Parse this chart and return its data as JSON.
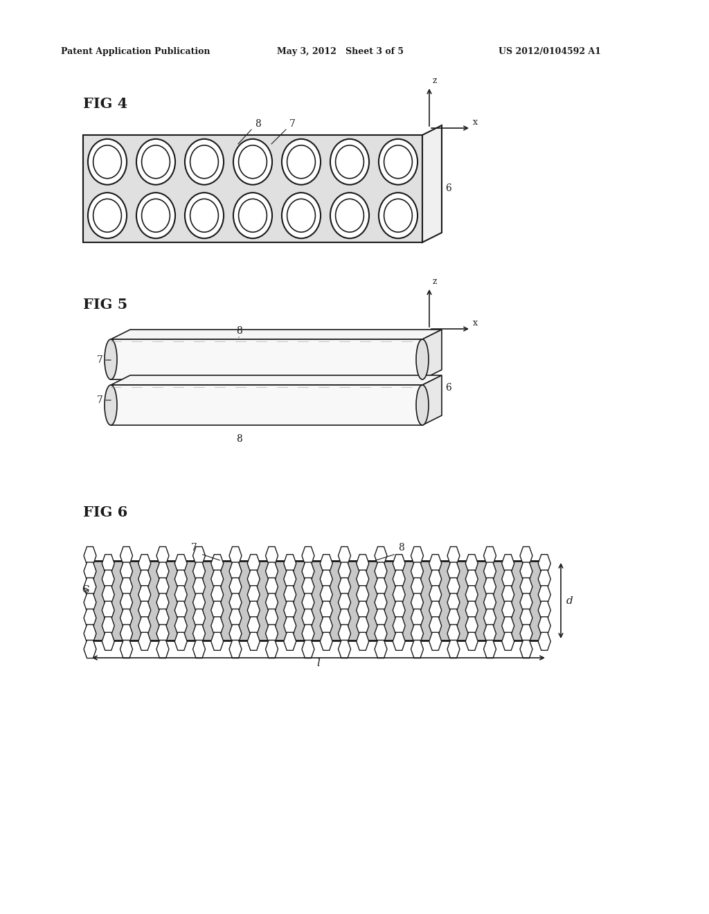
{
  "bg_color": "#ffffff",
  "header_left": "Patent Application Publication",
  "header_mid": "May 3, 2012   Sheet 3 of 5",
  "header_right": "US 2012/0104592 A1",
  "fig4_label": "FIG 4",
  "fig5_label": "FIG 5",
  "fig6_label": "FIG 6",
  "text_color": "#1a1a1a",
  "line_color": "#1a1a1a"
}
